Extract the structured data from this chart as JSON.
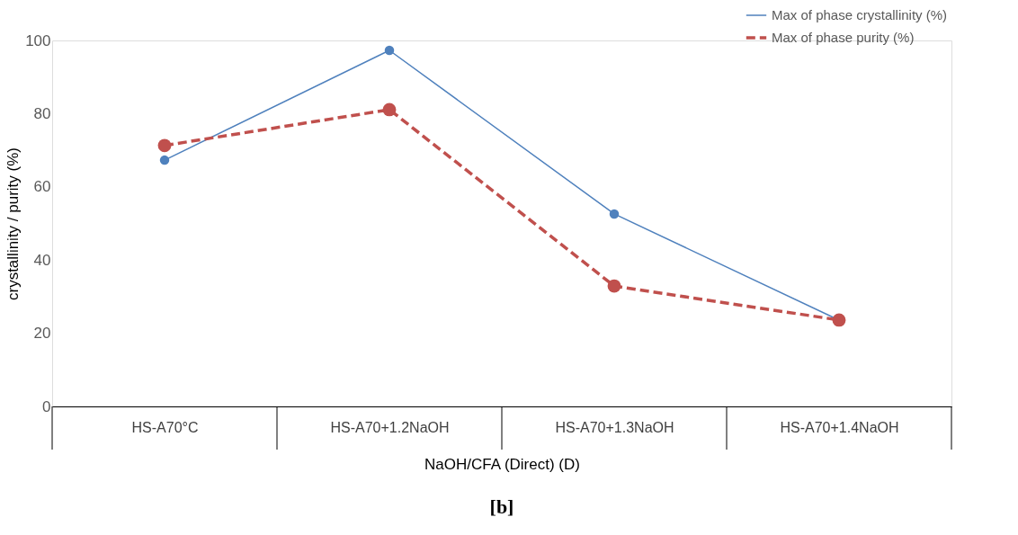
{
  "chart_data": {
    "type": "line",
    "categories": [
      "HS-A70°C",
      "HS-A70+1.2NaOH",
      "HS-A70+1.3NaOH",
      "HS-A70+1.4NaOH"
    ],
    "series": [
      {
        "name": "Max of phase crystallinity (%)",
        "color": "#4f81bd",
        "line_style": "solid",
        "values": [
          67.3,
          97.3,
          52.6,
          23.6
        ]
      },
      {
        "name": "Max of phase purity  (%)",
        "color": "#c0504d",
        "line_style": "dashed",
        "values": [
          71.3,
          81.1,
          32.9,
          23.6
        ]
      }
    ],
    "xlabel": "NaOH/CFA (Direct) (D)",
    "ylabel": "crystallinity / purity (%)",
    "ylim": [
      0,
      100
    ],
    "yticks": [
      0,
      20,
      40,
      60,
      80,
      100
    ],
    "grid": false,
    "legend": "top right",
    "marker": "circle",
    "annotations": [
      "[b]"
    ]
  }
}
